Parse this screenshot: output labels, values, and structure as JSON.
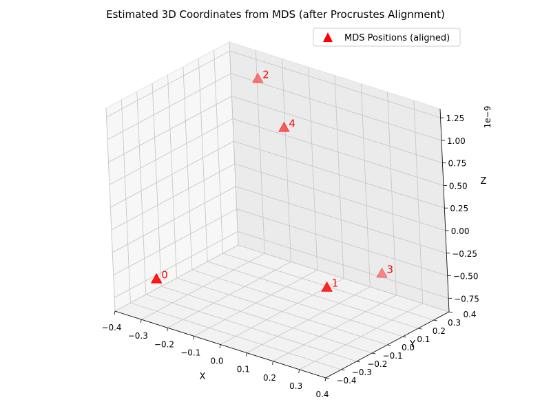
{
  "chart_data": {
    "type": "scatter",
    "projection": "3d",
    "title": "Estimated 3D Coordinates from MDS (after Procrustes Alignment)",
    "xlabel": "X",
    "ylabel": "Y",
    "zlabel": "Z",
    "z_offset_text": "1e−9",
    "xlim": [
      -0.4,
      0.4
    ],
    "ylim": [
      -0.4,
      0.4
    ],
    "zlim": [
      -0.9,
      1.35
    ],
    "x_ticks": [
      -0.4,
      -0.3,
      -0.2,
      -0.1,
      0.0,
      0.1,
      0.2,
      0.3,
      0.4
    ],
    "x_tick_labels": [
      "−0.4",
      "−0.3",
      "−0.2",
      "−0.1",
      "0.0",
      "0.1",
      "0.2",
      "0.3",
      "0.4"
    ],
    "y_ticks": [
      -0.4,
      -0.3,
      -0.2,
      -0.1,
      0.0,
      0.1,
      0.2,
      0.3,
      0.4
    ],
    "y_tick_labels": [
      "−0.4",
      "−0.3",
      "−0.2",
      "−0.1",
      "0.0",
      "0.1",
      "0.2",
      "0.3",
      "0.4"
    ],
    "z_ticks": [
      -0.75,
      -0.5,
      -0.25,
      0.0,
      0.25,
      0.5,
      0.75,
      1.0,
      1.25
    ],
    "z_tick_labels": [
      "−0.75",
      "−0.50",
      "−0.25",
      "0.00",
      "0.25",
      "0.50",
      "0.75",
      "1.00",
      "1.25"
    ],
    "grid": true,
    "legend_position": "top-right",
    "marker": "triangle",
    "color": "#ff0000",
    "series": [
      {
        "name": "MDS Positions (aligned)",
        "points": [
          {
            "label": "0",
            "x": -0.32,
            "y": -0.26,
            "z": -0.6
          },
          {
            "label": "1",
            "x": 0.28,
            "y": -0.17,
            "z": -0.22
          },
          {
            "label": "2",
            "x": -0.23,
            "y": 0.29,
            "z": 1.2
          },
          {
            "label": "3",
            "x": 0.16,
            "y": 0.38,
            "z": -0.68
          },
          {
            "label": "4",
            "x": -0.04,
            "y": 0.13,
            "z": 0.98
          }
        ]
      }
    ]
  }
}
